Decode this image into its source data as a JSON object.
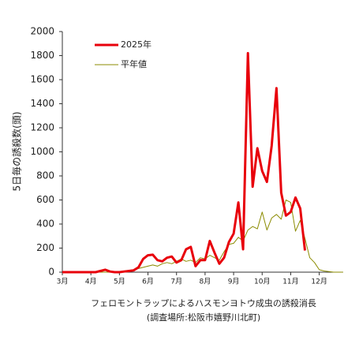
{
  "chart_data": {
    "type": "line",
    "y_label": "5日毎の誘殺数(頭)",
    "caption": [
      "フェロモントラップによるハスモンヨトウ成虫の誘殺消長",
      "(調査場所:松阪市嬉野川北町)"
    ],
    "categories": [
      "3月",
      null,
      null,
      null,
      null,
      null,
      "4月",
      null,
      null,
      null,
      null,
      null,
      "5月",
      null,
      null,
      null,
      null,
      null,
      "6月",
      null,
      null,
      null,
      null,
      null,
      "7月",
      null,
      null,
      null,
      null,
      null,
      "8月",
      null,
      null,
      null,
      null,
      null,
      "9月",
      null,
      null,
      null,
      null,
      null,
      "10月",
      null,
      null,
      null,
      null,
      null,
      "11月",
      null,
      null,
      null,
      null,
      null,
      "12月",
      null,
      null,
      null,
      null,
      null
    ],
    "series": [
      {
        "name": "2025年",
        "color": "#e8000b",
        "values": [
          0,
          0,
          0,
          0,
          0,
          0,
          0,
          0,
          10,
          20,
          5,
          0,
          0,
          5,
          10,
          15,
          40,
          110,
          140,
          145,
          100,
          90,
          120,
          130,
          80,
          100,
          190,
          210,
          50,
          100,
          100,
          260,
          160,
          70,
          120,
          250,
          320,
          580,
          190,
          1820,
          710,
          1030,
          840,
          750,
          1050,
          1530,
          660,
          470,
          500,
          620,
          530,
          180,
          null,
          null,
          null,
          null,
          null,
          null,
          null,
          null
        ]
      },
      {
        "name": "平年値",
        "color": "#8b8b00",
        "values": [
          0,
          0,
          0,
          0,
          0,
          0,
          0,
          0,
          0,
          0,
          0,
          0,
          5,
          10,
          15,
          20,
          30,
          40,
          50,
          60,
          50,
          70,
          80,
          70,
          90,
          110,
          90,
          100,
          80,
          120,
          110,
          140,
          120,
          100,
          170,
          230,
          240,
          290,
          260,
          350,
          380,
          360,
          500,
          350,
          450,
          480,
          440,
          600,
          580,
          340,
          430,
          280,
          120,
          80,
          20,
          10,
          5,
          0,
          0,
          0
        ]
      }
    ],
    "ylim": [
      0,
      2000
    ],
    "yticks": [
      0,
      200,
      400,
      600,
      800,
      1000,
      1200,
      1400,
      1600,
      1800,
      2000
    ],
    "legend": "upper left"
  }
}
